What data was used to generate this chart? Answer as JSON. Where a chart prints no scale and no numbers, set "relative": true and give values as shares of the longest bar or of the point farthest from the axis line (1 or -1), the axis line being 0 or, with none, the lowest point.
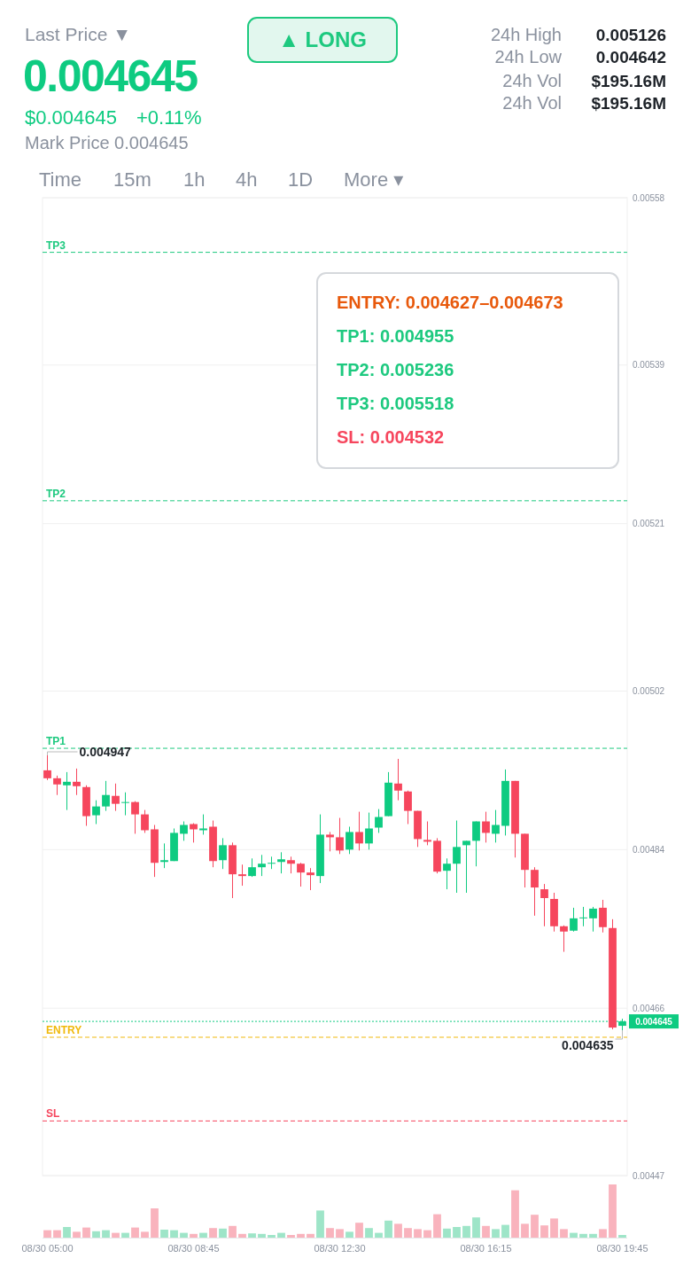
{
  "chart_data": [
    {
      "type": "other",
      "annotations": [
        "Last Price ▼",
        "0.004645",
        "$0.004645",
        "+0.11%",
        "Mark Price 0.004645",
        "▲ LONG",
        "24h High",
        "24h Low",
        "24h Vol",
        "24h Vol",
        "0.005126",
        "0.004642",
        "$195.16M",
        "$195.16M",
        "Time",
        "15m",
        "1h",
        "4h",
        "1D",
        "More ▾"
      ]
    },
    {
      "type": "candlestick",
      "ylim": [
        0.00447,
        0.00558
      ],
      "yticks": [
        0.00447,
        0.00466,
        0.00484,
        0.00502,
        0.00521,
        0.00539,
        0.00558
      ],
      "grid": "y",
      "categories": [
        "08/30 05:00",
        null,
        null,
        null,
        null,
        null,
        null,
        null,
        null,
        null,
        null,
        null,
        null,
        null,
        null,
        "08/30 08:45",
        null,
        null,
        null,
        null,
        null,
        null,
        null,
        null,
        null,
        null,
        null,
        null,
        null,
        null,
        "08/30 12:30",
        null,
        null,
        null,
        null,
        null,
        null,
        null,
        null,
        null,
        null,
        null,
        null,
        null,
        null,
        "08/30 16:15",
        null,
        null,
        null,
        null,
        null,
        null,
        null,
        null,
        null,
        null,
        null,
        null,
        null,
        "08/30 19:45"
      ],
      "ohlc": [
        [
          0.00493,
          0.004947,
          0.004919,
          0.004921
        ],
        [
          0.004921,
          0.004924,
          0.004902,
          0.004914
        ],
        [
          0.004913,
          0.004928,
          0.004885,
          0.004917
        ],
        [
          0.004917,
          0.004932,
          0.004902,
          0.004912
        ],
        [
          0.004911,
          0.004913,
          0.004867,
          0.004878
        ],
        [
          0.004879,
          0.004896,
          0.004869,
          0.004889
        ],
        [
          0.004889,
          0.004918,
          0.004884,
          0.004902
        ],
        [
          0.004901,
          0.004915,
          0.004884,
          0.004892
        ],
        [
          0.004893,
          0.004905,
          0.004879,
          0.004894
        ],
        [
          0.004894,
          0.004895,
          0.004858,
          0.00488
        ],
        [
          0.00488,
          0.004885,
          0.004859,
          0.004862
        ],
        [
          0.004863,
          0.004868,
          0.004809,
          0.004825
        ],
        [
          0.004826,
          0.004847,
          0.004819,
          0.004828
        ],
        [
          0.004827,
          0.004864,
          0.004827,
          0.004859
        ],
        [
          0.004858,
          0.004872,
          0.00485,
          0.004868
        ],
        [
          0.004869,
          0.00487,
          0.004848,
          0.004863
        ],
        [
          0.004862,
          0.00488,
          0.004857,
          0.004864
        ],
        [
          0.004866,
          0.004873,
          0.00482,
          0.004827
        ],
        [
          0.004828,
          0.004853,
          0.004818,
          0.004845
        ],
        [
          0.004845,
          0.004848,
          0.004785,
          0.004812
        ],
        [
          0.004812,
          0.004823,
          0.004799,
          0.00481
        ],
        [
          0.00481,
          0.00483,
          0.004809,
          0.00482
        ],
        [
          0.00482,
          0.004834,
          0.00481,
          0.004824
        ],
        [
          0.004824,
          0.004832,
          0.004818,
          0.004825
        ],
        [
          0.004826,
          0.004837,
          0.004813,
          0.004829
        ],
        [
          0.004828,
          0.004832,
          0.004813,
          0.004824
        ],
        [
          0.004824,
          0.004825,
          0.004798,
          0.004814
        ],
        [
          0.004814,
          0.004819,
          0.004794,
          0.004811
        ],
        [
          0.00481,
          0.00488,
          0.004802,
          0.004857
        ],
        [
          0.004857,
          0.00486,
          0.004838,
          0.004854
        ],
        [
          0.004854,
          0.004876,
          0.004835,
          0.004839
        ],
        [
          0.00484,
          0.004866,
          0.004835,
          0.00486
        ],
        [
          0.00486,
          0.004883,
          0.004839,
          0.004847
        ],
        [
          0.004847,
          0.004882,
          0.00484,
          0.004864
        ],
        [
          0.004865,
          0.004886,
          0.004859,
          0.004877
        ],
        [
          0.004878,
          0.004928,
          0.004878,
          0.004916
        ],
        [
          0.004915,
          0.004943,
          0.004896,
          0.004907
        ],
        [
          0.004906,
          0.004907,
          0.004869,
          0.004884
        ],
        [
          0.004884,
          0.004884,
          0.004843,
          0.004852
        ],
        [
          0.004851,
          0.004872,
          0.004845,
          0.004849
        ],
        [
          0.00485,
          0.004853,
          0.004813,
          0.004815
        ],
        [
          0.004816,
          0.00483,
          0.004795,
          0.004824
        ],
        [
          0.004824,
          0.004873,
          0.004791,
          0.004843
        ],
        [
          0.004845,
          0.00485,
          0.004791,
          0.00485
        ],
        [
          0.00485,
          0.004872,
          0.004821,
          0.004872
        ],
        [
          0.004872,
          0.004883,
          0.004848,
          0.004859
        ],
        [
          0.004858,
          0.004885,
          0.004848,
          0.004868
        ],
        [
          0.004867,
          0.004931,
          0.004856,
          0.004918
        ],
        [
          0.004918,
          0.004918,
          0.004831,
          0.004858
        ],
        [
          0.004858,
          0.004858,
          0.004797,
          0.004817
        ],
        [
          0.004817,
          0.00482,
          0.004765,
          0.004797
        ],
        [
          0.004795,
          0.004801,
          0.004753,
          0.004785
        ],
        [
          0.004784,
          0.004791,
          0.004747,
          0.004753
        ],
        [
          0.004753,
          0.004754,
          0.004724,
          0.004747
        ],
        [
          0.004748,
          0.004774,
          0.004747,
          0.004762
        ],
        [
          0.004762,
          0.004775,
          0.004753,
          0.004763
        ],
        [
          0.004762,
          0.004775,
          0.004747,
          0.004773
        ],
        [
          0.004774,
          0.004783,
          0.004746,
          0.004752
        ],
        [
          0.004751,
          0.004761,
          0.004636,
          0.004638
        ],
        [
          0.00464,
          0.004648,
          0.004635,
          0.004645
        ]
      ],
      "colors": [
        "#f6465d",
        "#f6465d",
        "#0ecb81",
        "#f6465d",
        "#f6465d",
        "#0ecb81",
        "#0ecb81",
        "#f6465d",
        "#0ecb81",
        "#f6465d",
        "#f6465d",
        "#f6465d",
        "#0ecb81",
        "#0ecb81",
        "#0ecb81",
        "#f6465d",
        "#0ecb81",
        "#f6465d",
        "#0ecb81",
        "#f6465d",
        "#f6465d",
        "#0ecb81",
        "#0ecb81",
        "#0ecb81",
        "#0ecb81",
        "#f6465d",
        "#f6465d",
        "#f6465d",
        "#0ecb81",
        "#f6465d",
        "#f6465d",
        "#0ecb81",
        "#f6465d",
        "#0ecb81",
        "#0ecb81",
        "#0ecb81",
        "#f6465d",
        "#f6465d",
        "#f6465d",
        "#f6465d",
        "#f6465d",
        "#0ecb81",
        "#0ecb81",
        "#0ecb81",
        "#0ecb81",
        "#f6465d",
        "#0ecb81",
        "#0ecb81",
        "#f6465d",
        "#f6465d",
        "#f6465d",
        "#f6465d",
        "#f6465d",
        "#f6465d",
        "#0ecb81",
        "#0ecb81",
        "#0ecb81",
        "#f6465d",
        "#f6465d",
        "#0ecb81"
      ],
      "ref_lines": [
        {
          "axis": "y",
          "value": 0.005518,
          "label": "TP3",
          "color": "#1dc97f",
          "line_style": "dashed"
        },
        {
          "axis": "y",
          "value": 0.005236,
          "label": "TP2",
          "color": "#1dc97f",
          "line_style": "dashed"
        },
        {
          "axis": "y",
          "value": 0.004955,
          "label": "TP1",
          "color": "#1dc97f",
          "line_style": "dashed"
        },
        {
          "axis": "y",
          "value": 0.004645,
          "label": "0.004645",
          "color": "#0ecb81",
          "line_style": "dotted"
        },
        {
          "axis": "y",
          "value": 0.004627,
          "label": "ENTRY",
          "color": "#f0b90b",
          "line_style": "dashed"
        },
        {
          "axis": "y",
          "value": 0.004532,
          "label": "SL",
          "color": "#f6465d",
          "line_style": "dashed"
        }
      ],
      "annotations": [
        "ENTRY: 0.004627–0.004673",
        "TP1: 0.004955",
        "TP2: 0.005236",
        "TP3: 0.005518",
        "SL: 0.004532",
        {
          "text": "0.004947",
          "x": "08/30 05:00",
          "y": 0.004947
        },
        {
          "text": "0.004635",
          "x": "08/30 19:45",
          "y": 0.004635
        }
      ]
    },
    {
      "type": "bar",
      "relative": true,
      "categories": [
        null,
        null,
        null,
        null,
        null,
        null,
        null,
        null,
        null,
        null,
        null,
        null,
        null,
        null,
        null,
        null,
        null,
        null,
        null,
        null,
        null,
        null,
        null,
        null,
        null,
        null,
        null,
        null,
        null,
        null,
        null,
        null,
        null,
        null,
        null,
        null,
        null,
        null,
        null,
        null,
        null,
        null,
        null,
        null,
        null,
        null,
        null,
        null,
        null,
        null,
        null,
        null,
        null,
        null,
        null,
        null,
        null,
        null,
        null,
        null
      ],
      "values": [
        0.14,
        0.14,
        0.2,
        0.11,
        0.19,
        0.12,
        0.14,
        0.09,
        0.09,
        0.19,
        0.11,
        0.55,
        0.15,
        0.14,
        0.09,
        0.07,
        0.09,
        0.18,
        0.17,
        0.22,
        0.07,
        0.08,
        0.07,
        0.05,
        0.09,
        0.05,
        0.07,
        0.07,
        0.51,
        0.18,
        0.16,
        0.11,
        0.28,
        0.18,
        0.09,
        0.32,
        0.26,
        0.18,
        0.16,
        0.14,
        0.44,
        0.17,
        0.2,
        0.22,
        0.38,
        0.22,
        0.16,
        0.24,
        0.89,
        0.26,
        0.43,
        0.23,
        0.36,
        0.16,
        0.09,
        0.07,
        0.07,
        0.16,
        1,
        0.05
      ],
      "colors": [
        "#f9b3bd",
        "#f9b3bd",
        "#9ee5c8",
        "#f9b3bd",
        "#f9b3bd",
        "#9ee5c8",
        "#9ee5c8",
        "#f9b3bd",
        "#9ee5c8",
        "#f9b3bd",
        "#f9b3bd",
        "#f9b3bd",
        "#9ee5c8",
        "#9ee5c8",
        "#9ee5c8",
        "#f9b3bd",
        "#9ee5c8",
        "#f9b3bd",
        "#9ee5c8",
        "#f9b3bd",
        "#f9b3bd",
        "#9ee5c8",
        "#9ee5c8",
        "#9ee5c8",
        "#9ee5c8",
        "#f9b3bd",
        "#f9b3bd",
        "#f9b3bd",
        "#9ee5c8",
        "#f9b3bd",
        "#f9b3bd",
        "#9ee5c8",
        "#f9b3bd",
        "#9ee5c8",
        "#9ee5c8",
        "#9ee5c8",
        "#f9b3bd",
        "#f9b3bd",
        "#f9b3bd",
        "#f9b3bd",
        "#f9b3bd",
        "#9ee5c8",
        "#9ee5c8",
        "#9ee5c8",
        "#9ee5c8",
        "#f9b3bd",
        "#9ee5c8",
        "#9ee5c8",
        "#f9b3bd",
        "#f9b3bd",
        "#f9b3bd",
        "#f9b3bd",
        "#f9b3bd",
        "#f9b3bd",
        "#9ee5c8",
        "#9ee5c8",
        "#9ee5c8",
        "#f9b3bd",
        "#f9b3bd",
        "#9ee5c8"
      ]
    }
  ]
}
